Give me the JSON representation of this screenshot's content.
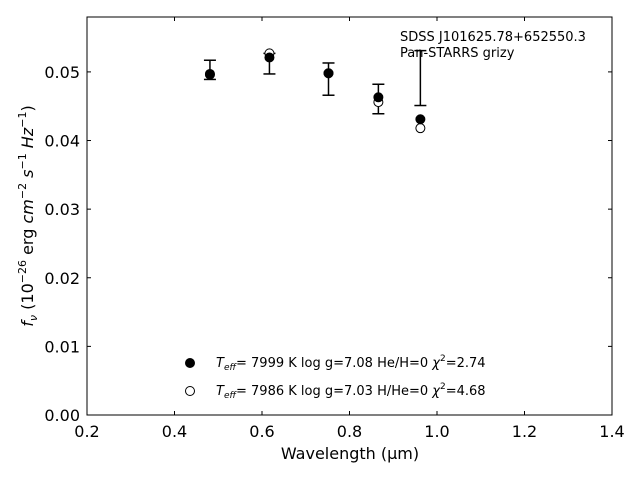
{
  "chart_data": {
    "type": "scatter",
    "xlabel": "Wavelength (μm)",
    "ylabel_parts": {
      "f": "f",
      "nu": "ν",
      "open": " (10",
      "exp1": "−26",
      "erg": " erg ",
      "cm": "cm",
      "exp2": "−2",
      "s": " s",
      "exp3": "−1",
      "Hz": " Hz",
      "exp4": "−1",
      "close": ")"
    },
    "xlim": [
      0.2,
      1.4
    ],
    "ylim": [
      0.0,
      0.058
    ],
    "xticks": [
      0.2,
      0.4,
      0.6,
      0.8,
      1.0,
      1.2,
      1.4
    ],
    "xtick_labels": [
      "0.2",
      "0.4",
      "0.6",
      "0.8",
      "1.0",
      "1.2",
      "1.4"
    ],
    "yticks": [
      0.0,
      0.01,
      0.02,
      0.03,
      0.04,
      0.05
    ],
    "ytick_labels": [
      "0.00",
      "0.01",
      "0.02",
      "0.03",
      "0.04",
      "0.05"
    ],
    "annotation": {
      "line1": "SDSS J101625.78+652550.3",
      "line2": "Pan-STARRS grizy"
    },
    "observed": [
      {
        "x": 0.481,
        "y": 0.0503,
        "ylo": 0.0489,
        "yhi": 0.0517
      },
      {
        "x": 0.617,
        "y": 0.0512,
        "ylo": 0.0497,
        "yhi": 0.0527
      },
      {
        "x": 0.752,
        "y": 0.0489,
        "ylo": 0.0466,
        "yhi": 0.0513
      },
      {
        "x": 0.866,
        "y": 0.0461,
        "ylo": 0.0439,
        "yhi": 0.0482
      },
      {
        "x": 0.962,
        "y": 0.0491,
        "ylo": 0.0451,
        "yhi": 0.0531
      }
    ],
    "series": [
      {
        "marker": "filled",
        "x": [
          0.481,
          0.617,
          0.752,
          0.866,
          0.962
        ],
        "y": [
          0.0496,
          0.0521,
          0.0498,
          0.0463,
          0.0431
        ],
        "legend": {
          "teff_value": "=  7999 K  log g=7.08  He/H=0  ",
          "chi_value": "=2.74"
        }
      },
      {
        "marker": "open",
        "x": [
          0.481,
          0.617,
          0.752,
          0.866,
          0.962
        ],
        "y": [
          0.0497,
          0.0527,
          0.0498,
          0.0456,
          0.0418
        ],
        "legend": {
          "teff_value": "=  7986 K  log g=7.03  H/He=0  ",
          "chi_value": "=4.68"
        }
      }
    ],
    "legend_symbols": {
      "T": "T",
      "eff": "eff",
      "chi": "χ",
      "sq": "2"
    },
    "legend_placement": "bottom-center"
  }
}
